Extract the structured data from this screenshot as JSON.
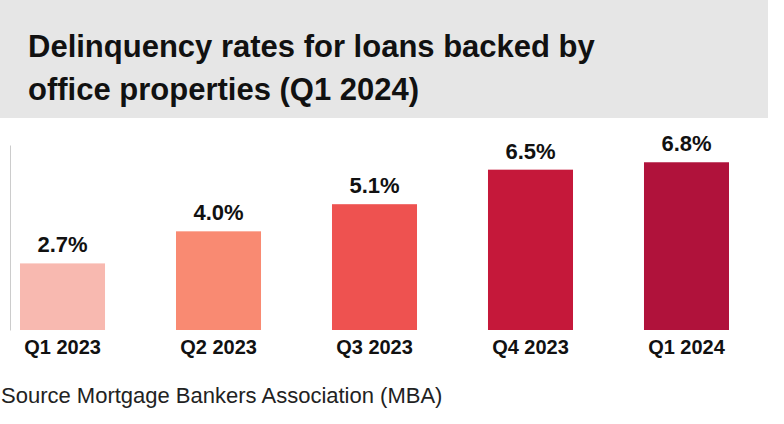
{
  "chart_data": {
    "type": "bar",
    "title": [
      "Delinquency rates for loans backed by",
      "office properties (Q1 2024)"
    ],
    "source": "Source Mortgage Bankers Association (MBA)",
    "categories": [
      "Q1 2023",
      "Q2 2023",
      "Q3 2023",
      "Q4 2023",
      "Q1 2024"
    ],
    "values": [
      2.7,
      4.0,
      5.1,
      6.5,
      6.8
    ],
    "value_labels": [
      "2.7%",
      "4.0%",
      "5.1%",
      "6.5%",
      "6.8%"
    ],
    "colors": [
      "#f8b9b0",
      "#f98a72",
      "#ee5250",
      "#c5183a",
      "#b0123b"
    ],
    "ylim": [
      0,
      7.5
    ],
    "data_labels": true,
    "tick_labels": "x",
    "grid": false
  }
}
